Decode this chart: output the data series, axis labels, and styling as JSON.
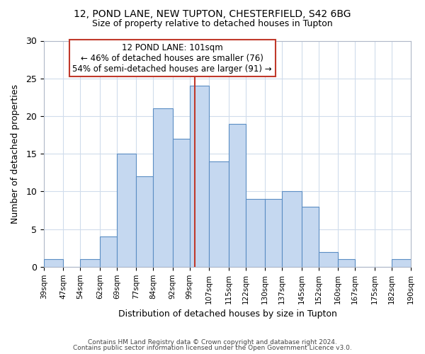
{
  "title1": "12, POND LANE, NEW TUPTON, CHESTERFIELD, S42 6BG",
  "title2": "Size of property relative to detached houses in Tupton",
  "xlabel": "Distribution of detached houses by size in Tupton",
  "ylabel": "Number of detached properties",
  "bin_labels": [
    "39sqm",
    "47sqm",
    "54sqm",
    "62sqm",
    "69sqm",
    "77sqm",
    "84sqm",
    "92sqm",
    "99sqm",
    "107sqm",
    "115sqm",
    "122sqm",
    "130sqm",
    "137sqm",
    "145sqm",
    "152sqm",
    "160sqm",
    "167sqm",
    "175sqm",
    "182sqm",
    "190sqm"
  ],
  "counts": [
    1,
    0,
    1,
    4,
    15,
    12,
    21,
    17,
    24,
    14,
    19,
    9,
    9,
    10,
    8,
    2,
    1,
    0,
    0,
    1
  ],
  "bar_left_edges": [
    39,
    47,
    54,
    62,
    69,
    77,
    84,
    92,
    99,
    107,
    115,
    122,
    130,
    137,
    145,
    152,
    160,
    167,
    175,
    182
  ],
  "bar_widths": [
    8,
    7,
    8,
    7,
    8,
    7,
    8,
    7,
    8,
    8,
    7,
    8,
    7,
    8,
    7,
    8,
    7,
    8,
    7,
    8
  ],
  "bar_color": "#c5d8f0",
  "bar_edge_color": "#5b8ec4",
  "property_value": 101,
  "vline_color": "#c0392b",
  "annotation_box_color": "#c0392b",
  "annotation_line1": "12 POND LANE: 101sqm",
  "annotation_line2": "← 46% of detached houses are smaller (76)",
  "annotation_line3": "54% of semi-detached houses are larger (91) →",
  "ylim": [
    0,
    30
  ],
  "yticks": [
    0,
    5,
    10,
    15,
    20,
    25,
    30
  ],
  "footer1": "Contains HM Land Registry data © Crown copyright and database right 2024.",
  "footer2": "Contains public sector information licensed under the Open Government Licence v3.0.",
  "background_color": "#ffffff",
  "grid_color": "#d0dcec"
}
